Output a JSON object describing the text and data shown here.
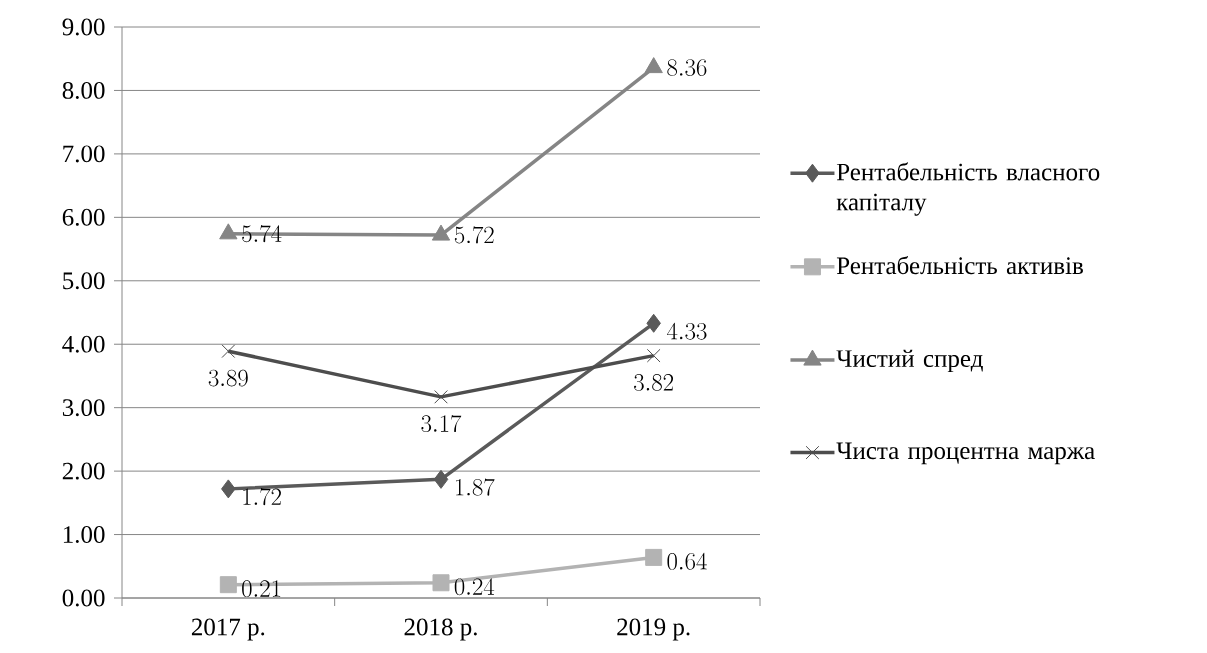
{
  "chart_data": {
    "type": "line",
    "categories": [
      "2017 р.",
      "2018 р.",
      "2019 р."
    ],
    "series": [
      {
        "name": "Рентабельність власного капіталу",
        "color": "#5a5a5a",
        "values": [
          1.72,
          1.87,
          4.33
        ],
        "marker": "diamond"
      },
      {
        "name": "Рентабельність активів",
        "color": "#b3b3b3",
        "values": [
          0.21,
          0.24,
          0.64
        ],
        "marker": "square"
      },
      {
        "name": "Чистий спред",
        "color": "#858585",
        "values": [
          5.74,
          5.72,
          8.36
        ],
        "marker": "triangle"
      },
      {
        "name": "Чиста процентна маржа",
        "color": "#4d4d4d",
        "values": [
          3.89,
          3.17,
          3.82
        ],
        "marker": "cross"
      }
    ],
    "ylim": [
      0,
      9
    ],
    "yticks": [
      {
        "value": 0,
        "label": "0.00"
      },
      {
        "value": 1,
        "label": "1.00"
      },
      {
        "value": 2,
        "label": "2.00"
      },
      {
        "value": 3,
        "label": "3.00"
      },
      {
        "value": 4,
        "label": "4.00"
      },
      {
        "value": 5,
        "label": "5.00"
      },
      {
        "value": 6,
        "label": "6.00"
      },
      {
        "value": 7,
        "label": "7.00"
      },
      {
        "value": 8,
        "label": "8.00"
      },
      {
        "value": 9,
        "label": "9.00"
      }
    ],
    "grid": "y",
    "legend": "right",
    "data_labels": true
  }
}
